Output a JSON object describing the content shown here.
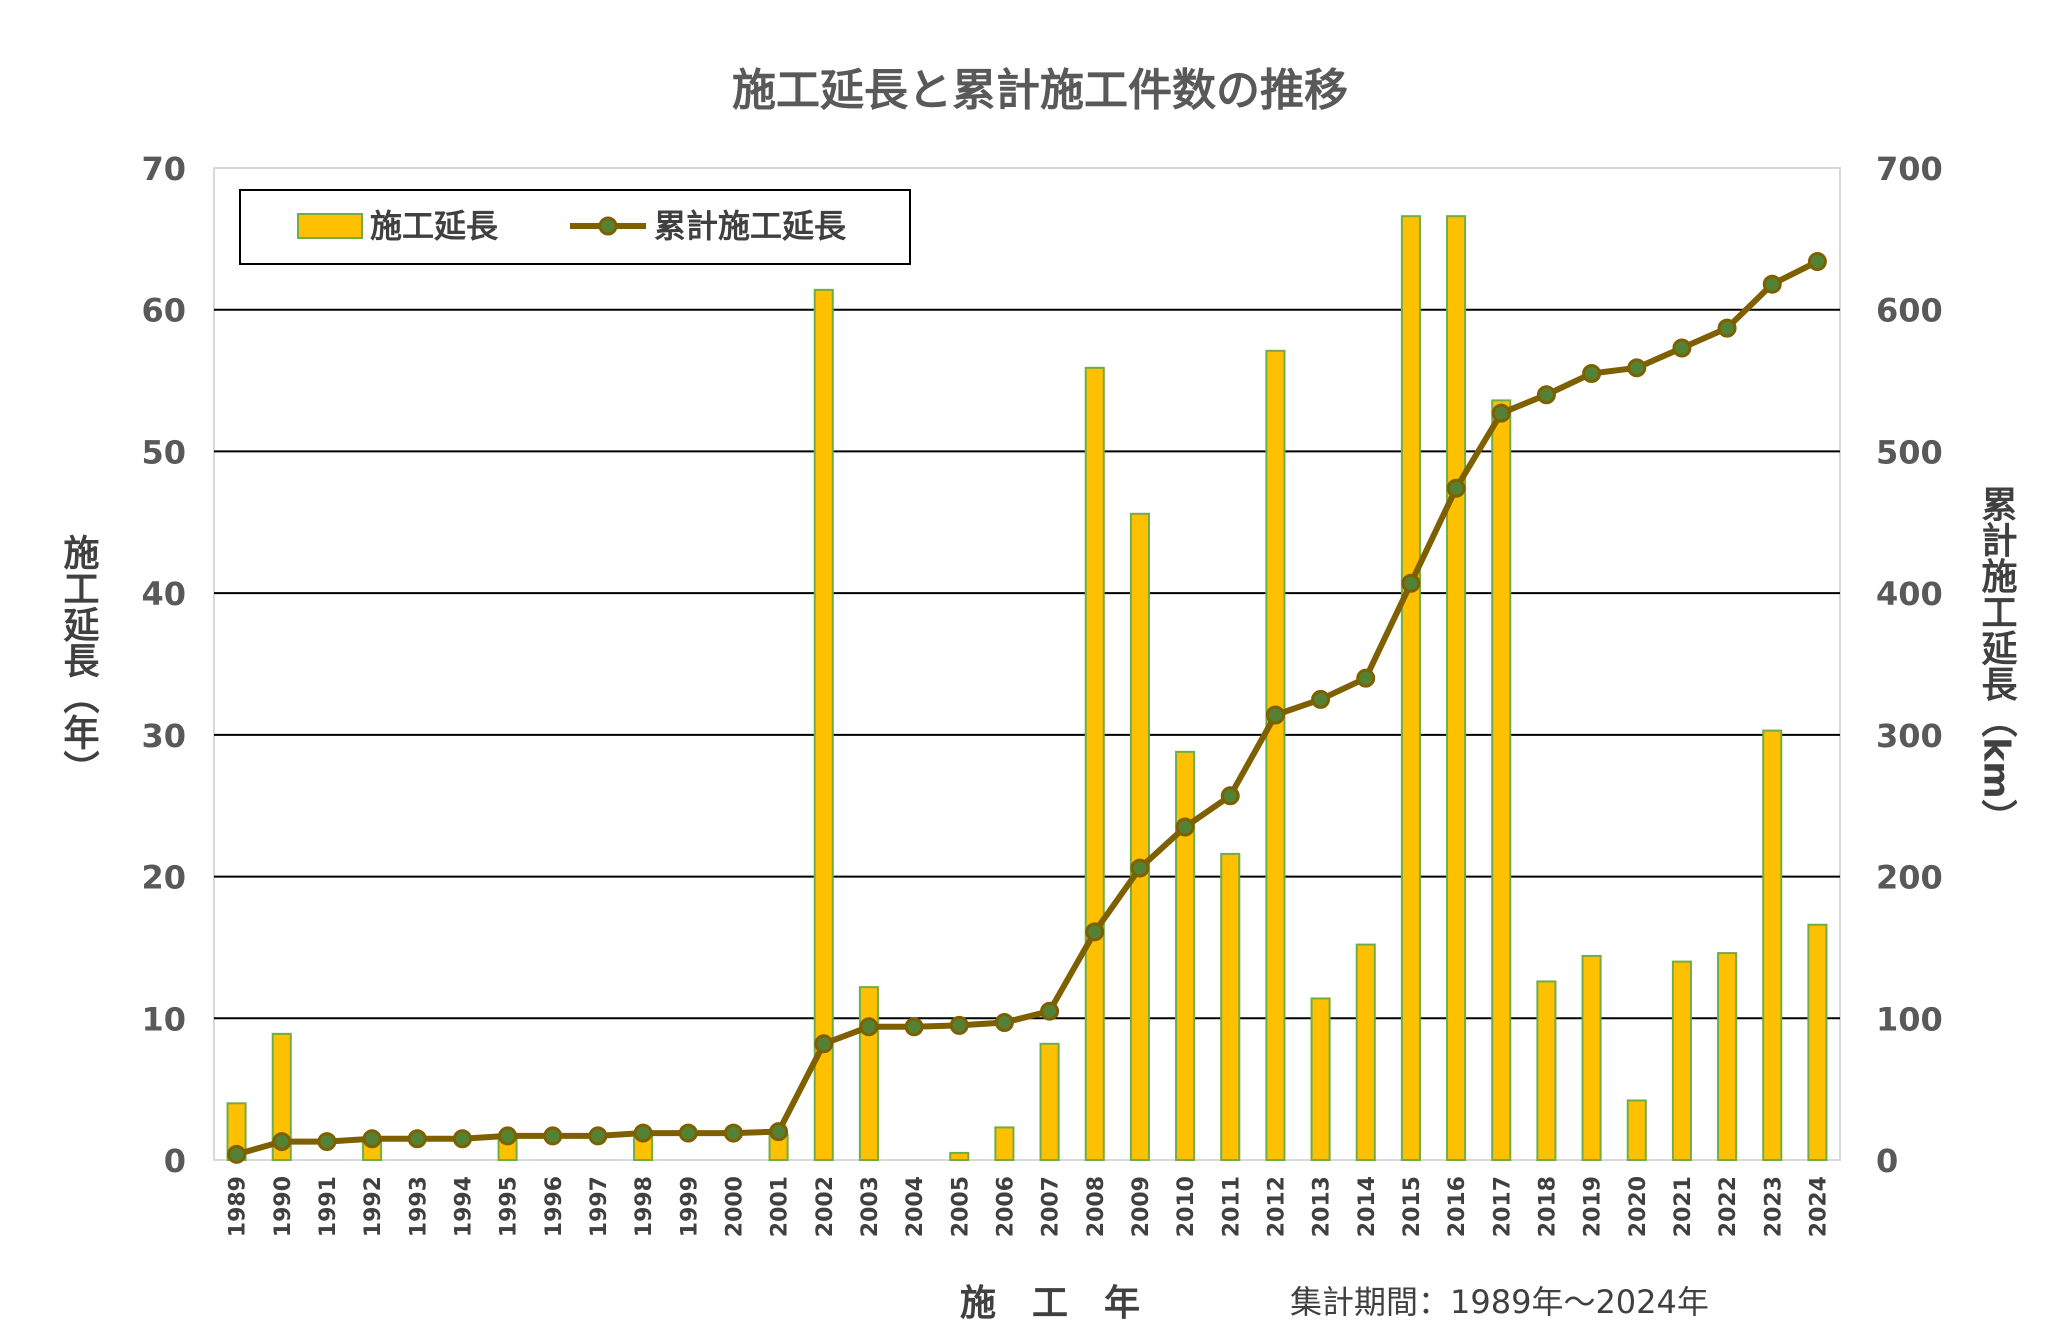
{
  "chart_data": {
    "type": "bar",
    "title": "施工延長と累計施工件数の推移",
    "xlabel": "施　工　年",
    "ylabel": "施工延長（年）",
    "y2label": "累計施工延長（km）",
    "note": "集計期間：1989年～2024年",
    "ylim": [
      0,
      70
    ],
    "y2lim": [
      0,
      700
    ],
    "yticks": [
      "0",
      "10",
      "20",
      "30",
      "40",
      "50",
      "60",
      "70"
    ],
    "y2ticks": [
      "0",
      "100",
      "200",
      "300",
      "400",
      "500",
      "600",
      "700"
    ],
    "grid": true,
    "legend_position": "top-left",
    "categories": [
      "1989",
      "1990",
      "1991",
      "1992",
      "1993",
      "1994",
      "1995",
      "1996",
      "1997",
      "1998",
      "1999",
      "2000",
      "2001",
      "2002",
      "2003",
      "2004",
      "2005",
      "2006",
      "2007",
      "2008",
      "2009",
      "2010",
      "2011",
      "2012",
      "2013",
      "2014",
      "2015",
      "2016",
      "2017",
      "2018",
      "2019",
      "2020",
      "2021",
      "2022",
      "2023",
      "2024"
    ],
    "series": [
      {
        "name": "施工延長",
        "type": "bar",
        "axis": "left",
        "color": "#FFC000",
        "edge_color": "#70AD47",
        "values": [
          4.0,
          8.9,
          0.0,
          1.4,
          0.0,
          0.0,
          1.7,
          0.0,
          0.0,
          1.8,
          0.0,
          0.0,
          1.8,
          61.4,
          12.2,
          0.0,
          0.5,
          2.3,
          8.2,
          55.9,
          45.6,
          28.8,
          21.6,
          57.1,
          11.4,
          15.2,
          66.6,
          66.6,
          53.6,
          12.6,
          14.4,
          4.2,
          14.0,
          14.6,
          30.3,
          16.6
        ]
      },
      {
        "name": "累計施工延長",
        "type": "line",
        "axis": "right",
        "color": "#7F6000",
        "marker_color": "#548235",
        "values": [
          4,
          13,
          13,
          15,
          15,
          15,
          17,
          17,
          17,
          19,
          19,
          19,
          20,
          82,
          94,
          94,
          95,
          97,
          105,
          161,
          206,
          235,
          257,
          314,
          325,
          340,
          407,
          474,
          527,
          540,
          555,
          559,
          573,
          587,
          618,
          634
        ]
      }
    ]
  }
}
